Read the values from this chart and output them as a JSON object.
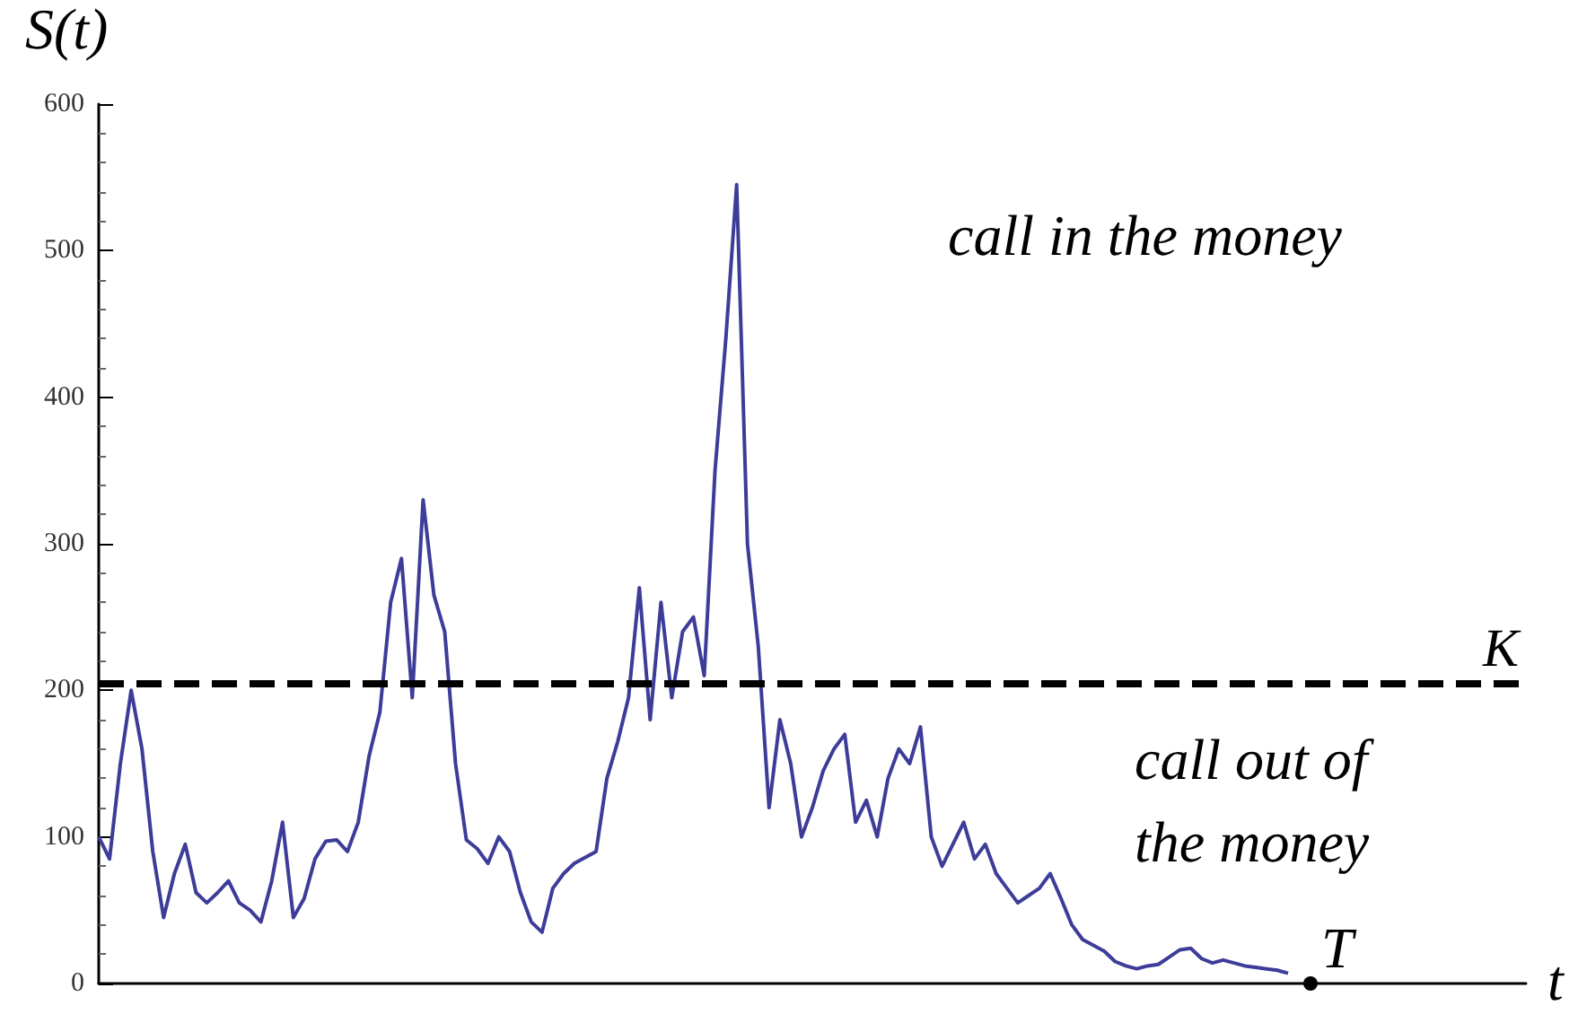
{
  "chart_data": {
    "type": "line",
    "ylabel": "S(t)",
    "xlabel": "t",
    "categories": [
      null,
      null,
      null,
      null,
      null,
      null,
      null,
      null,
      null,
      null,
      null,
      null,
      null,
      null,
      null,
      null,
      null,
      null,
      null,
      null,
      null,
      null,
      null,
      null,
      null,
      null,
      null,
      null,
      null,
      null,
      null,
      null,
      null,
      null,
      null,
      null,
      null,
      null,
      null,
      null,
      null,
      null,
      null,
      null,
      null,
      null,
      null,
      null,
      null,
      null,
      null,
      null,
      null,
      null,
      null,
      null,
      null,
      null,
      null,
      null,
      null,
      null,
      null,
      null,
      null,
      null,
      null,
      null,
      null,
      null,
      null,
      null,
      null,
      null,
      null,
      null,
      null,
      null,
      null,
      null,
      null,
      null,
      null,
      null,
      null,
      null,
      null,
      null,
      null,
      null,
      null,
      null,
      null,
      null,
      null,
      null,
      null,
      null,
      null,
      null,
      null,
      null,
      null,
      null,
      null,
      null,
      null,
      null,
      null,
      null,
      null,
      null,
      null,
      null,
      null,
      null,
      null,
      null,
      null,
      null,
      null,
      null,
      null,
      null,
      null,
      null,
      null,
      null,
      null,
      null,
      null,
      null,
      null
    ],
    "series": [
      {
        "color": "#3d3d99",
        "values": [
          100,
          85,
          150,
          200,
          160,
          90,
          45,
          75,
          95,
          62,
          55,
          62,
          70,
          55,
          50,
          42,
          70,
          110,
          45,
          58,
          85,
          97,
          98,
          90,
          110,
          155,
          185,
          260,
          290,
          195,
          330,
          265,
          240,
          150,
          98,
          92,
          82,
          100,
          90,
          62,
          42,
          35,
          65,
          75,
          82,
          86,
          90,
          140,
          165,
          195,
          270,
          180,
          260,
          195,
          240,
          250,
          210,
          350,
          440,
          545,
          300,
          230,
          120,
          180,
          150,
          100,
          120,
          145,
          160,
          170,
          110,
          125,
          100,
          140,
          160,
          150,
          175,
          100,
          80,
          95,
          110,
          85,
          95,
          75,
          65,
          55,
          60,
          65,
          75,
          58,
          40,
          30,
          26,
          22,
          15,
          12,
          10,
          12,
          13,
          18,
          23,
          24,
          17,
          14,
          16,
          14,
          12,
          11,
          10,
          9,
          7,
          null,
          null,
          null,
          null,
          null,
          null,
          null,
          null,
          null,
          null,
          null,
          null,
          null,
          null,
          null,
          null,
          null,
          null,
          null,
          null,
          null,
          null
        ]
      }
    ],
    "ylim": [
      0,
      600
    ],
    "yticks": [
      0,
      100,
      200,
      300,
      400,
      500,
      600
    ],
    "grid": false,
    "line_style": "solid",
    "tick_labels": "y",
    "ref_lines": [
      {
        "axis": "y",
        "value": 205,
        "label": "K",
        "color": "#000000",
        "line_style": "dashed"
      }
    ],
    "annotations": [
      "call in the money",
      "call out of the money",
      "T"
    ]
  }
}
